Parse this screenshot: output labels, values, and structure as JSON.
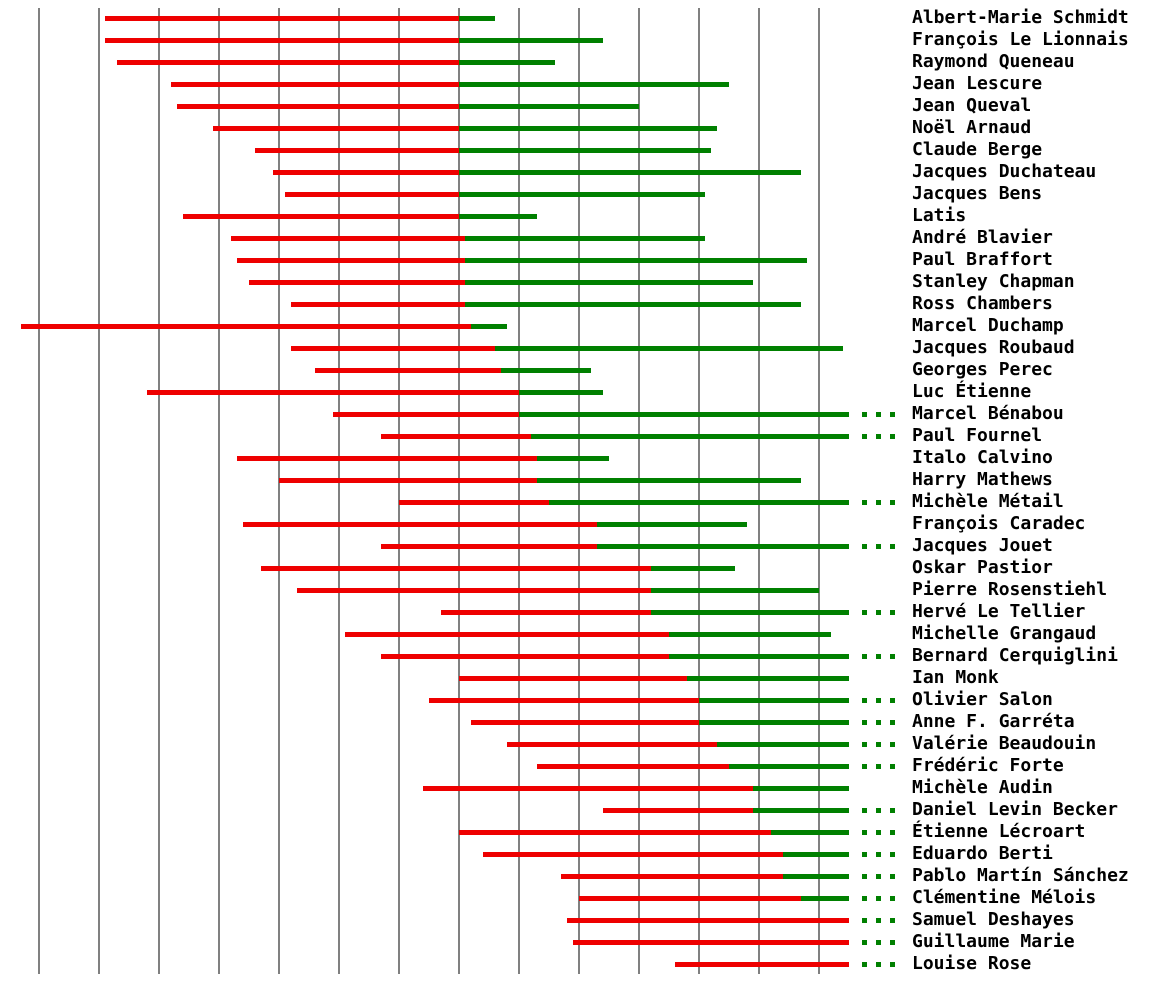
{
  "chart_data": {
    "type": "timeline",
    "title": "",
    "x_ticks": [
      1890,
      1900,
      1910,
      1920,
      1930,
      1940,
      1950,
      1960,
      1970,
      1980,
      1990,
      2000,
      2010,
      2020
    ],
    "x_range": [
      1884,
      2032
    ],
    "present_year": 2025,
    "colors": {
      "before_joining": "#ee0000",
      "member": "#008000",
      "ongoing_dots": "#008000",
      "gridline": "#808080",
      "text": "#000000"
    },
    "legend_semantics": {
      "red_bar": "years from birth until joining",
      "green_bar": "years of membership",
      "green_dots": "ongoing"
    },
    "rows": [
      {
        "name": "Albert-Marie Schmidt",
        "birth": 1901,
        "joined": 1960,
        "end": 1966,
        "ongoing": false
      },
      {
        "name": "François Le Lionnais",
        "birth": 1901,
        "joined": 1960,
        "end": 1984,
        "ongoing": false
      },
      {
        "name": "Raymond Queneau",
        "birth": 1903,
        "joined": 1960,
        "end": 1976,
        "ongoing": false
      },
      {
        "name": "Jean Lescure",
        "birth": 1912,
        "joined": 1960,
        "end": 2005,
        "ongoing": false
      },
      {
        "name": "Jean Queval",
        "birth": 1913,
        "joined": 1960,
        "end": 1990,
        "ongoing": false
      },
      {
        "name": "Noël Arnaud",
        "birth": 1919,
        "joined": 1960,
        "end": 2003,
        "ongoing": false
      },
      {
        "name": "Claude Berge",
        "birth": 1926,
        "joined": 1960,
        "end": 2002,
        "ongoing": false
      },
      {
        "name": "Jacques Duchateau",
        "birth": 1929,
        "joined": 1960,
        "end": 2017,
        "ongoing": false
      },
      {
        "name": "Jacques Bens",
        "birth": 1931,
        "joined": 1960,
        "end": 2001,
        "ongoing": false
      },
      {
        "name": "Latis",
        "birth": 1914,
        "joined": 1960,
        "end": 1973,
        "ongoing": false
      },
      {
        "name": "André Blavier",
        "birth": 1922,
        "joined": 1961,
        "end": 2001,
        "ongoing": false
      },
      {
        "name": "Paul Braffort",
        "birth": 1923,
        "joined": 1961,
        "end": 2018,
        "ongoing": false
      },
      {
        "name": "Stanley Chapman",
        "birth": 1925,
        "joined": 1961,
        "end": 2009,
        "ongoing": false
      },
      {
        "name": "Ross Chambers",
        "birth": 1932,
        "joined": 1961,
        "end": 2017,
        "ongoing": false
      },
      {
        "name": "Marcel Duchamp",
        "birth": 1887,
        "joined": 1962,
        "end": 1968,
        "ongoing": false
      },
      {
        "name": "Jacques Roubaud",
        "birth": 1932,
        "joined": 1966,
        "end": 2024,
        "ongoing": false
      },
      {
        "name": "Georges Perec",
        "birth": 1936,
        "joined": 1967,
        "end": 1982,
        "ongoing": false
      },
      {
        "name": "Luc Étienne",
        "birth": 1908,
        "joined": 1970,
        "end": 1984,
        "ongoing": false
      },
      {
        "name": "Marcel Bénabou",
        "birth": 1939,
        "joined": 1970,
        "end": 2025,
        "ongoing": true
      },
      {
        "name": "Paul Fournel",
        "birth": 1947,
        "joined": 1972,
        "end": 2025,
        "ongoing": true
      },
      {
        "name": "Italo Calvino",
        "birth": 1923,
        "joined": 1973,
        "end": 1985,
        "ongoing": false
      },
      {
        "name": "Harry Mathews",
        "birth": 1930,
        "joined": 1973,
        "end": 2017,
        "ongoing": false
      },
      {
        "name": "Michèle Métail",
        "birth": 1950,
        "joined": 1975,
        "end": 2025,
        "ongoing": true
      },
      {
        "name": "François Caradec",
        "birth": 1924,
        "joined": 1983,
        "end": 2008,
        "ongoing": false
      },
      {
        "name": "Jacques Jouet",
        "birth": 1947,
        "joined": 1983,
        "end": 2025,
        "ongoing": true
      },
      {
        "name": "Oskar Pastior",
        "birth": 1927,
        "joined": 1992,
        "end": 2006,
        "ongoing": false
      },
      {
        "name": "Pierre Rosenstiehl",
        "birth": 1933,
        "joined": 1992,
        "end": 2020,
        "ongoing": false
      },
      {
        "name": "Hervé Le Tellier",
        "birth": 1957,
        "joined": 1992,
        "end": 2025,
        "ongoing": true
      },
      {
        "name": "Michelle Grangaud",
        "birth": 1941,
        "joined": 1995,
        "end": 2022,
        "ongoing": false
      },
      {
        "name": "Bernard Cerquiglini",
        "birth": 1947,
        "joined": 1995,
        "end": 2025,
        "ongoing": true
      },
      {
        "name": "Ian Monk",
        "birth": 1960,
        "joined": 1998,
        "end": 2025,
        "ongoing": false
      },
      {
        "name": "Olivier Salon",
        "birth": 1955,
        "joined": 2000,
        "end": 2025,
        "ongoing": true
      },
      {
        "name": "Anne F. Garréta",
        "birth": 1962,
        "joined": 2000,
        "end": 2025,
        "ongoing": true
      },
      {
        "name": "Valérie Beaudouin",
        "birth": 1968,
        "joined": 2003,
        "end": 2025,
        "ongoing": true
      },
      {
        "name": "Frédéric Forte",
        "birth": 1973,
        "joined": 2005,
        "end": 2025,
        "ongoing": true
      },
      {
        "name": "Michèle Audin",
        "birth": 1954,
        "joined": 2009,
        "end": 2025,
        "ongoing": false
      },
      {
        "name": "Daniel Levin Becker",
        "birth": 1984,
        "joined": 2009,
        "end": 2025,
        "ongoing": true
      },
      {
        "name": "Étienne Lécroart",
        "birth": 1960,
        "joined": 2012,
        "end": 2025,
        "ongoing": true
      },
      {
        "name": "Eduardo Berti",
        "birth": 1964,
        "joined": 2014,
        "end": 2025,
        "ongoing": true
      },
      {
        "name": "Pablo Martín Sánchez",
        "birth": 1977,
        "joined": 2014,
        "end": 2025,
        "ongoing": true
      },
      {
        "name": "Clémentine Mélois",
        "birth": 1980,
        "joined": 2017,
        "end": 2025,
        "ongoing": true
      },
      {
        "name": "Samuel Deshayes",
        "birth": 1978,
        "joined": 2025,
        "end": 2025,
        "ongoing": true
      },
      {
        "name": "Guillaume Marie",
        "birth": 1979,
        "joined": 2025,
        "end": 2025,
        "ongoing": true
      },
      {
        "name": "Louise Rose",
        "birth": 1996,
        "joined": 2025,
        "end": 2025,
        "ongoing": true
      }
    ]
  }
}
